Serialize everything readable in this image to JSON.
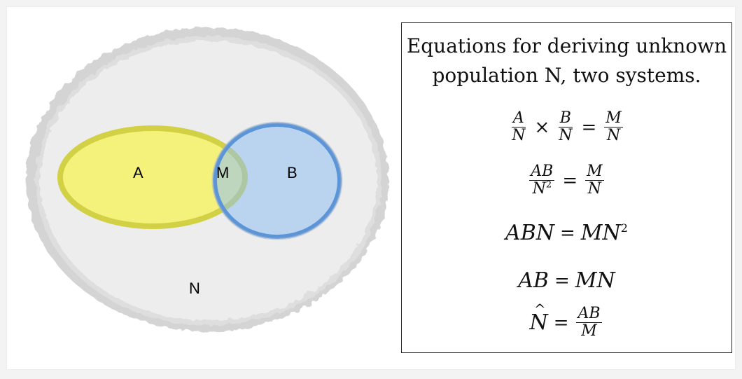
{
  "diagram": {
    "labels": {
      "a": "A",
      "m": "M",
      "b": "B",
      "n": "N"
    },
    "colors": {
      "population_fill": "#ededed",
      "population_edge": "#d4d4d4",
      "set_a_fill": "#f5f276",
      "set_a_edge": "#d2d044",
      "set_b_fill": "#8fbff3",
      "set_b_edge": "#5b95d8"
    }
  },
  "equations": {
    "title": "Equations for deriving unknown\npopulation N, two systems.",
    "eq1": {
      "a": "A",
      "n1": "N",
      "times": "×",
      "b": "B",
      "n2": "N",
      "eq": "=",
      "m": "M",
      "n3": "N"
    },
    "eq2": {
      "ab": "AB",
      "n": "N",
      "exp": "2",
      "eq": "=",
      "m": "M",
      "n2": "N"
    },
    "eq3": {
      "lhs": "ABN",
      "eq": "=",
      "rhs": "MN",
      "exp": "2"
    },
    "eq4": {
      "lhs": "AB",
      "eq": "=",
      "rhs": "MN"
    },
    "eq5": {
      "n": "N",
      "eq": "=",
      "ab": "AB",
      "m": "M"
    }
  }
}
